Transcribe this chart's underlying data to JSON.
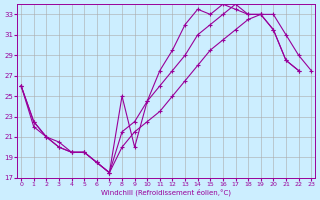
{
  "xlabel": "Windchill (Refroidissement éolien,°C)",
  "bg_color": "#cceeff",
  "line_color": "#990099",
  "grid_color": "#aaaaaa",
  "ylim": [
    17,
    34
  ],
  "xlim": [
    -0.3,
    23.3
  ],
  "yticks": [
    17,
    19,
    21,
    23,
    25,
    27,
    29,
    31,
    33
  ],
  "xticks": [
    0,
    1,
    2,
    3,
    4,
    5,
    6,
    7,
    8,
    9,
    10,
    11,
    12,
    13,
    14,
    15,
    16,
    17,
    18,
    19,
    20,
    21,
    22,
    23
  ],
  "series": [
    [
      26.0,
      22.5,
      21.0,
      20.0,
      19.5,
      19.5,
      18.5,
      17.5,
      25.0,
      20.0,
      24.5,
      27.5,
      29.5,
      32.0,
      33.5,
      33.0,
      34.0,
      33.5,
      33.0,
      33.0,
      31.5,
      28.5,
      27.5,
      null
    ],
    [
      26.0,
      22.5,
      21.0,
      20.0,
      19.5,
      19.5,
      18.5,
      17.5,
      21.5,
      22.5,
      24.5,
      26.0,
      27.5,
      29.0,
      31.0,
      32.0,
      33.0,
      34.0,
      33.0,
      33.0,
      31.5,
      28.5,
      27.5,
      null
    ],
    [
      26.0,
      22.0,
      21.0,
      20.5,
      19.5,
      19.5,
      18.5,
      17.5,
      20.0,
      21.5,
      22.5,
      23.5,
      25.0,
      26.5,
      28.0,
      29.5,
      30.5,
      31.5,
      32.5,
      33.0,
      33.0,
      31.0,
      29.0,
      27.5
    ]
  ],
  "marker": "+"
}
